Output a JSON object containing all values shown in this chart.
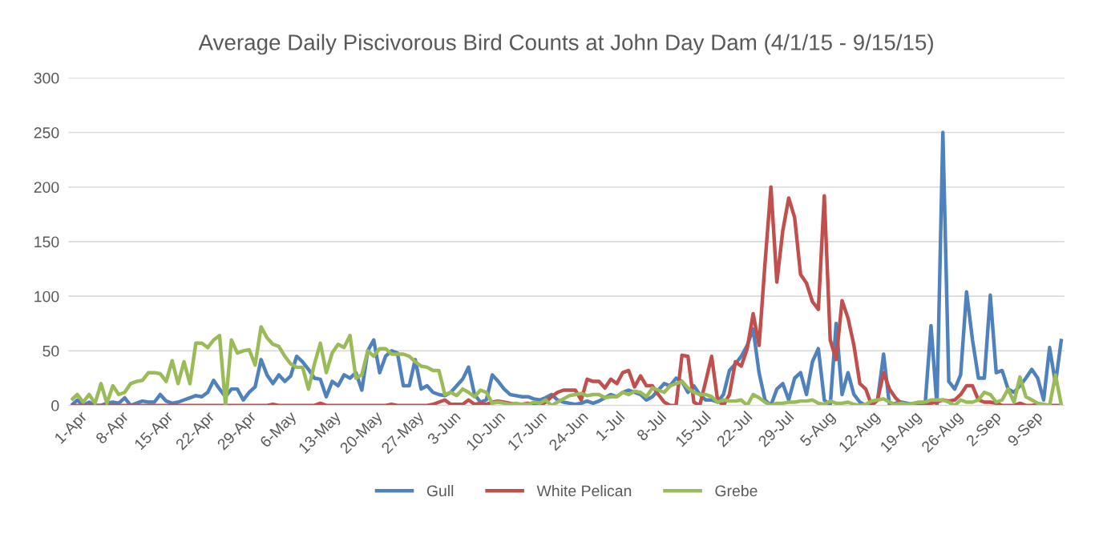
{
  "chart_data": {
    "type": "line",
    "title": "Average Daily Piscivorous Bird Counts at John Day Dam (4/1/15 - 9/15/15)",
    "categories": [
      "1-Apr",
      null,
      null,
      null,
      null,
      null,
      null,
      "8-Apr",
      null,
      null,
      null,
      null,
      null,
      null,
      "15-Apr",
      null,
      null,
      null,
      null,
      null,
      null,
      "22-Apr",
      null,
      null,
      null,
      null,
      null,
      null,
      "29-Apr",
      null,
      null,
      null,
      null,
      null,
      null,
      "6-May",
      null,
      null,
      null,
      null,
      null,
      null,
      "13-May",
      null,
      null,
      null,
      null,
      null,
      null,
      "20-May",
      null,
      null,
      null,
      null,
      null,
      null,
      "27-May",
      null,
      null,
      null,
      null,
      null,
      null,
      "3-Jun",
      null,
      null,
      null,
      null,
      null,
      null,
      "10-Jun",
      null,
      null,
      null,
      null,
      null,
      null,
      "17-Jun",
      null,
      null,
      null,
      null,
      null,
      null,
      "24-Jun",
      null,
      null,
      null,
      null,
      null,
      null,
      "1-Jul",
      null,
      null,
      null,
      null,
      null,
      null,
      "8-Jul",
      null,
      null,
      null,
      null,
      null,
      null,
      "15-Jul",
      null,
      null,
      null,
      null,
      null,
      null,
      "22-Jul",
      null,
      null,
      null,
      null,
      null,
      null,
      "29-Jul",
      null,
      null,
      null,
      null,
      null,
      null,
      "5-Aug",
      null,
      null,
      null,
      null,
      null,
      null,
      "12-Aug",
      null,
      null,
      null,
      null,
      null,
      null,
      "19-Aug",
      null,
      null,
      null,
      null,
      null,
      null,
      "26-Aug",
      null,
      null,
      null,
      null,
      null,
      null,
      "2-Sep",
      null,
      null,
      null,
      null,
      null,
      null,
      "9-Sep",
      null,
      null,
      null,
      null,
      null,
      null
    ],
    "series": [
      {
        "name": "Gull",
        "color": "#4f81bd",
        "values": [
          0,
          5,
          0,
          3,
          0,
          0,
          2,
          3,
          2,
          7,
          0,
          2,
          4,
          3,
          3,
          10,
          4,
          2,
          3,
          5,
          7,
          9,
          8,
          12,
          23,
          15,
          8,
          15,
          15,
          5,
          12,
          17,
          42,
          28,
          20,
          28,
          22,
          27,
          45,
          40,
          33,
          25,
          24,
          8,
          22,
          18,
          28,
          25,
          30,
          14,
          50,
          60,
          30,
          45,
          50,
          48,
          18,
          18,
          42,
          15,
          18,
          12,
          10,
          9,
          12,
          18,
          24,
          35,
          10,
          3,
          5,
          28,
          22,
          15,
          10,
          9,
          8,
          8,
          6,
          5,
          7,
          10,
          5,
          3,
          2,
          1,
          2,
          4,
          2,
          4,
          7,
          10,
          8,
          12,
          14,
          12,
          10,
          5,
          8,
          14,
          20,
          18,
          25,
          22,
          12,
          18,
          10,
          5,
          5,
          3,
          10,
          32,
          38,
          45,
          55,
          70,
          30,
          5,
          0,
          15,
          20,
          5,
          25,
          30,
          10,
          40,
          52,
          5,
          0,
          75,
          10,
          30,
          10,
          3,
          0,
          2,
          5,
          47,
          0,
          2,
          3,
          2,
          1,
          0,
          0,
          73,
          0,
          250,
          22,
          15,
          28,
          104,
          60,
          25,
          25,
          101,
          30,
          32,
          15,
          12,
          18,
          25,
          33,
          25,
          5,
          53,
          20,
          61
        ]
      },
      {
        "name": "White Pelican",
        "color": "#c0504d",
        "values": [
          0,
          0,
          0,
          0,
          0,
          0,
          0,
          0,
          0,
          0,
          0,
          0,
          0,
          0,
          0,
          0,
          0,
          0,
          0,
          0,
          0,
          0,
          0,
          0,
          0,
          0,
          0,
          0,
          0,
          0,
          0,
          0,
          0,
          0,
          1,
          0,
          0,
          0,
          0,
          0,
          0,
          0,
          2,
          0,
          0,
          0,
          0,
          0,
          0,
          0,
          0,
          0,
          0,
          0,
          1,
          0,
          0,
          0,
          0,
          0,
          0,
          1,
          3,
          5,
          1,
          1,
          1,
          5,
          1,
          2,
          1,
          3,
          4,
          3,
          2,
          1,
          1,
          2,
          1,
          0,
          3,
          8,
          12,
          14,
          14,
          14,
          5,
          24,
          22,
          22,
          16,
          24,
          20,
          30,
          32,
          17,
          27,
          18,
          18,
          10,
          3,
          0,
          0,
          46,
          45,
          3,
          0,
          22,
          45,
          5,
          0,
          10,
          40,
          36,
          52,
          84,
          55,
          130,
          200,
          113,
          160,
          190,
          172,
          120,
          112,
          95,
          88,
          192,
          60,
          42,
          96,
          80,
          55,
          20,
          15,
          0,
          5,
          30,
          15,
          7,
          2,
          0,
          0,
          0,
          0,
          2,
          3,
          5,
          4,
          5,
          10,
          18,
          18,
          5,
          3,
          3,
          2,
          0,
          0,
          0,
          2,
          0,
          0,
          1,
          0,
          0,
          0,
          0
        ]
      },
      {
        "name": "Grebe",
        "color": "#9bbb59",
        "values": [
          5,
          10,
          3,
          10,
          2,
          20,
          2,
          18,
          10,
          12,
          20,
          22,
          23,
          30,
          30,
          29,
          22,
          41,
          20,
          40,
          20,
          57,
          57,
          53,
          60,
          64,
          0,
          60,
          48,
          50,
          51,
          37,
          72,
          62,
          56,
          54,
          45,
          38,
          35,
          35,
          15,
          38,
          57,
          30,
          48,
          56,
          53,
          64,
          25,
          28,
          50,
          45,
          52,
          52,
          47,
          47,
          47,
          45,
          40,
          36,
          35,
          32,
          32,
          10,
          12,
          9,
          15,
          12,
          8,
          14,
          12,
          2,
          3,
          2,
          1,
          2,
          1,
          1,
          3,
          2,
          5,
          0,
          3,
          6,
          9,
          10,
          11,
          9,
          10,
          10,
          7,
          8,
          8,
          12,
          10,
          13,
          12,
          8,
          16,
          14,
          12,
          18,
          20,
          22,
          16,
          12,
          10,
          10,
          8,
          3,
          5,
          4,
          4,
          5,
          0,
          10,
          7,
          3,
          0,
          2,
          2,
          3,
          3,
          4,
          4,
          5,
          2,
          1,
          4,
          2,
          2,
          3,
          1,
          0,
          1,
          4,
          5,
          6,
          3,
          1,
          2,
          1,
          2,
          3,
          3,
          5,
          5,
          5,
          3,
          0,
          5,
          3,
          3,
          5,
          12,
          10,
          3,
          5,
          15,
          3,
          26,
          8,
          5,
          2,
          1,
          0,
          28,
          0
        ]
      }
    ],
    "ylim": [
      0,
      300
    ],
    "yticks": [
      0,
      50,
      100,
      150,
      200,
      250,
      300
    ],
    "grid": "y",
    "legend": "bottom",
    "marker": "none",
    "line_style": "solid"
  }
}
